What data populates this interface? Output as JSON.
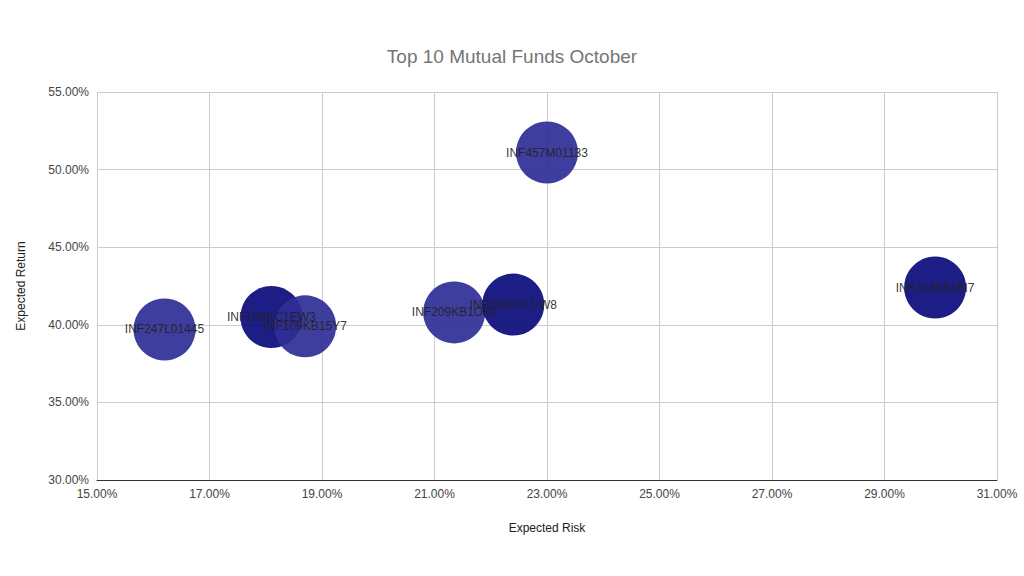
{
  "chart_data": {
    "type": "scatter",
    "title": "Top 10 Mutual Funds October",
    "x_label": "Expected Risk",
    "y_label": "Expected Return",
    "labels": [
      "INF247L01445",
      "INF109KC1EW3",
      "INF109KB15Y7",
      "INF209KB1O82",
      "INF200K01UW8",
      "INF457M01133",
      "INF204KB16I7"
    ],
    "x": [
      16.2,
      18.1,
      18.7,
      21.35,
      22.4,
      23.0,
      29.9
    ],
    "values": [
      39.7,
      40.5,
      39.9,
      40.8,
      41.3,
      51.1,
      42.4
    ],
    "colors": [
      "#2e2e96",
      "#0a0a7c",
      "#2e2e96",
      "#2e2e96",
      "#0a0a7c",
      "#2e2e96",
      "#0a0a7c"
    ],
    "marker": "circle",
    "xlim": [
      15,
      31
    ],
    "xticks": [
      {
        "value": 15,
        "label": "15.00%"
      },
      {
        "value": 17,
        "label": "17.00%"
      },
      {
        "value": 19,
        "label": "19.00%"
      },
      {
        "value": 21,
        "label": "21.00%"
      },
      {
        "value": 23,
        "label": "23.00%"
      },
      {
        "value": 25,
        "label": "25.00%"
      },
      {
        "value": 27,
        "label": "27.00%"
      },
      {
        "value": 29,
        "label": "29.00%"
      },
      {
        "value": 31,
        "label": "31.00%"
      }
    ],
    "ylim": [
      30,
      55
    ],
    "yticks": [
      {
        "value": 30,
        "label": "30.00%"
      },
      {
        "value": 35,
        "label": "35.00%"
      },
      {
        "value": 40,
        "label": "40.00%"
      },
      {
        "value": 45,
        "label": "45.00%"
      },
      {
        "value": 50,
        "label": "50.00%"
      },
      {
        "value": 55,
        "label": "55.00%"
      }
    ],
    "grid": true
  }
}
